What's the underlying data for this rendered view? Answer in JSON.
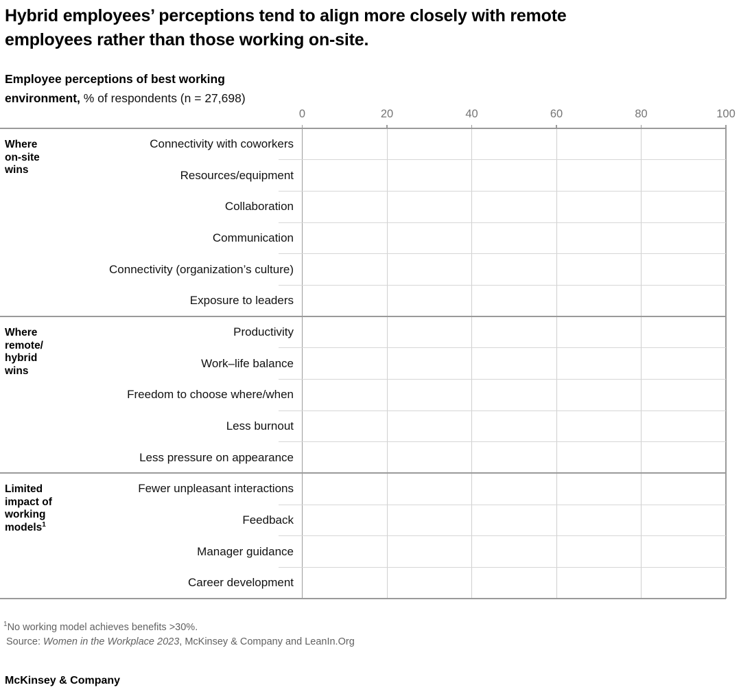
{
  "header": {
    "title_lines": [
      "Hybrid employees’ perceptions tend to align more closely with remote",
      "employees rather than those working on-site."
    ],
    "subtitle_line1_bold": "Employee perceptions of best working",
    "subtitle_line2_bold": "environment,",
    "subtitle_line2_rest": " % of respondents (n = 27,698)"
  },
  "chart_data": {
    "type": "table",
    "title": "Employee perceptions of best working environment",
    "unit": "% of respondents (n = 27,698)",
    "x_axis": {
      "ticks": [
        "0",
        "20",
        "40",
        "60",
        "80",
        "100"
      ],
      "range": [
        0,
        100
      ]
    },
    "grid": "vertical gridlines at ticks, horizontal separators per row, heavy rules at group boundaries",
    "legend": "none",
    "series": [],
    "groups": [
      {
        "label": "Where on-site wins",
        "label_lines": [
          "Where",
          "on-site",
          "wins"
        ],
        "label_sup": "",
        "rows": [
          "Connectivity with coworkers",
          "Resources/equipment",
          "Collaboration",
          "Communication",
          "Connectivity (organization’s culture)",
          "Exposure to leaders"
        ]
      },
      {
        "label": "Where remote/hybrid wins",
        "label_lines": [
          "Where",
          "remote/",
          "hybrid",
          "wins"
        ],
        "label_sup": "",
        "rows": [
          "Productivity",
          "Work–life balance",
          "Freedom to choose where/when",
          "Less burnout",
          "Less pressure on appearance"
        ]
      },
      {
        "label": "Limited impact of working models",
        "label_lines": [
          "Limited",
          "impact of",
          "working",
          "models"
        ],
        "label_sup": "1",
        "rows": [
          "Fewer unpleasant interactions",
          "Feedback",
          "Manager guidance",
          "Career development"
        ]
      }
    ]
  },
  "footnote": {
    "sup": "1",
    "text": "No working model achieves benefits >30%."
  },
  "source": {
    "prefix": "Source: ",
    "italic": "Women in the Workplace 2023",
    "suffix": ", McKinsey & Company and LeanIn.Org"
  },
  "footer": {
    "brand": "McKinsey & Company"
  }
}
